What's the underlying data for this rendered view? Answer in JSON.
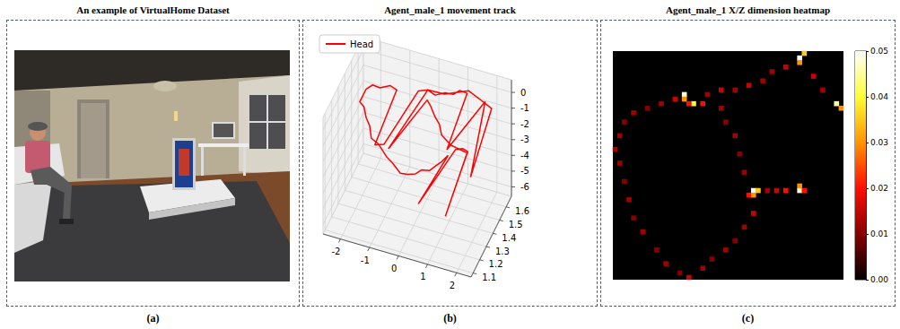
{
  "image": {
    "title": "An example of VirtualHome Dataset",
    "panel_label": "(a)"
  },
  "chart_data": [
    {
      "type": "line3d",
      "title": "Agent_male_1 movement track",
      "panel_label": "(b)",
      "legend": "upper left",
      "grid": true,
      "xlim": [
        -2.6,
        2.5
      ],
      "xticks": [
        -2,
        -1,
        0,
        1,
        2
      ],
      "ylim": [
        1.07,
        1.68
      ],
      "yticks": [
        1.1,
        1.2,
        1.3,
        1.4,
        1.5,
        1.6
      ],
      "zlim": [
        -6.6,
        0.8
      ],
      "zticks": [
        0,
        -1,
        -2,
        -3,
        -4,
        -5,
        -6
      ],
      "series": [
        {
          "name": "Head",
          "color": "#ff0000",
          "x": [
            1.5,
            1.2,
            0.9,
            0.7,
            0.4,
            0.1,
            -0.2,
            -0.5,
            -0.8,
            -1.0,
            -1.2,
            -1.5,
            -1.8,
            -2.1,
            -2.3,
            -2.4,
            -2.5,
            -2.4,
            -2.3,
            -2.2,
            -2.1,
            -1.9,
            -1.6,
            -1.4,
            -1.1,
            -0.9,
            -0.6,
            -0.4,
            -0.1,
            0.1,
            0.3,
            0.5,
            0.5,
            0.8,
            1.0,
            1.2,
            1.5,
            1.2,
            0.6,
            0.3,
            0.2,
            0.1,
            -0.1,
            -0.2,
            -0.6,
            -0.2,
            0.4,
            1.2,
            1.8,
            2.0,
            2.3,
            1.8,
            1.5
          ],
          "y": [
            1.15,
            1.58,
            1.6,
            1.59,
            1.6,
            1.58,
            1.6,
            1.59,
            1.2,
            1.15,
            1.57,
            1.6,
            1.58,
            1.6,
            1.59,
            1.6,
            1.58,
            1.6,
            1.59,
            1.6,
            1.58,
            1.6,
            1.59,
            1.6,
            1.58,
            1.6,
            1.59,
            1.6,
            1.58,
            1.6,
            1.59,
            1.6,
            1.15,
            1.58,
            1.6,
            1.59,
            1.12,
            1.58,
            1.6,
            1.59,
            1.6,
            1.58,
            1.6,
            1.59,
            1.18,
            1.6,
            1.59,
            1.6,
            1.58,
            1.6,
            1.15,
            1.59,
            1.14
          ],
          "z": [
            0.36,
            0.08,
            -0.06,
            -0.34,
            -0.48,
            -0.62,
            -0.62,
            -0.76,
            -1.04,
            -0.76,
            -0.9,
            -1.04,
            -1.18,
            -1.32,
            -1.6,
            -2.02,
            -2.44,
            -2.86,
            -3.42,
            -3.98,
            -4.54,
            -4.96,
            -5.52,
            -5.94,
            -6.22,
            -6.36,
            -6.08,
            -5.8,
            -5.52,
            -5.24,
            -4.82,
            -4.4,
            -3.7,
            -3.7,
            -3.7,
            -3.7,
            -3.7,
            -3.7,
            -3.7,
            -3.14,
            -2.58,
            -2.02,
            -1.6,
            -1.18,
            -1.04,
            -0.62,
            -0.48,
            0.08,
            -0.2,
            -0.62,
            -1.04,
            -0.2,
            0.36
          ]
        }
      ]
    },
    {
      "type": "heatmap",
      "title": "Agent_male_1 X/Z dimension heatmap",
      "panel_label": "(c)",
      "tick_labels": false,
      "shape": [
        50,
        50
      ],
      "cells": [
        [
          0,
          21,
          0.012
        ],
        [
          1,
          24,
          0.012
        ],
        [
          2,
          28,
          0.01
        ],
        [
          3,
          32,
          0.012
        ],
        [
          4,
          36,
          0.01
        ],
        [
          6,
          39,
          0.012
        ],
        [
          9,
          43,
          0.01
        ],
        [
          11,
          46,
          0.012
        ],
        [
          14,
          48,
          0.01
        ],
        [
          16,
          49,
          0.015
        ],
        [
          19,
          47,
          0.012
        ],
        [
          21,
          45,
          0.01
        ],
        [
          24,
          43,
          0.012
        ],
        [
          26,
          41,
          0.01
        ],
        [
          28,
          38,
          0.012
        ],
        [
          30,
          35,
          0.015
        ],
        [
          30,
          30,
          0.05
        ],
        [
          31,
          30,
          0.035
        ],
        [
          29,
          31,
          0.02
        ],
        [
          30,
          31,
          0.03
        ],
        [
          33,
          30,
          0.012
        ],
        [
          35,
          30,
          0.015
        ],
        [
          37,
          30,
          0.02
        ],
        [
          40,
          30,
          0.048
        ],
        [
          40,
          29,
          0.03
        ],
        [
          41,
          30,
          0.02
        ],
        [
          1,
          18,
          0.012
        ],
        [
          2,
          15,
          0.01
        ],
        [
          4,
          13,
          0.012
        ],
        [
          7,
          12,
          0.01
        ],
        [
          10,
          11,
          0.012
        ],
        [
          13,
          10,
          0.015
        ],
        [
          15,
          9,
          0.048
        ],
        [
          15,
          10,
          0.03
        ],
        [
          17,
          11,
          0.04
        ],
        [
          16,
          11,
          0.02
        ],
        [
          20,
          9,
          0.012
        ],
        [
          23,
          8,
          0.015
        ],
        [
          26,
          8,
          0.012
        ],
        [
          29,
          7,
          0.015
        ],
        [
          32,
          6,
          0.012
        ],
        [
          34,
          4,
          0.012
        ],
        [
          37,
          3,
          0.015
        ],
        [
          40,
          1,
          0.05
        ],
        [
          40,
          2,
          0.03
        ],
        [
          41,
          0,
          0.035
        ],
        [
          43,
          5,
          0.015
        ],
        [
          45,
          8,
          0.012
        ],
        [
          48,
          11,
          0.045
        ],
        [
          49,
          12,
          0.03
        ],
        [
          23,
          12,
          0.012
        ],
        [
          24,
          15,
          0.01
        ],
        [
          26,
          18,
          0.012
        ],
        [
          27,
          22,
          0.01
        ],
        [
          28,
          26,
          0.012
        ],
        [
          19,
          11,
          0.02
        ]
      ],
      "colorbar": {
        "range": [
          0,
          0.05
        ],
        "ticks": [
          {
            "value": 0,
            "label": "0.00"
          },
          0.01,
          0.02,
          0.03,
          0.04,
          0.05
        ]
      }
    }
  ]
}
